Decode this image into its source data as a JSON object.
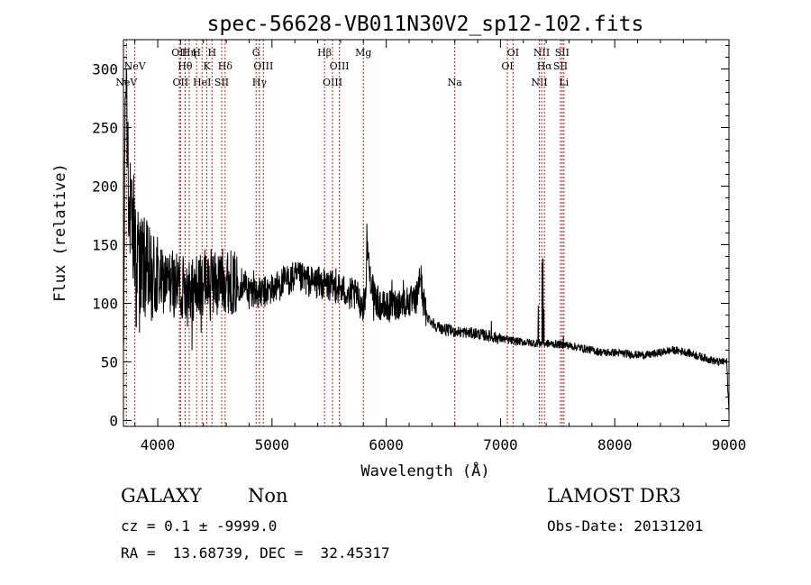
{
  "chart_data": {
    "type": "line",
    "title": "spec-56628-VB011N30V2_sp12-102.fits",
    "xlabel": "Wavelength (Å)",
    "ylabel": "Flux (relative)",
    "xlim": [
      3700,
      9000
    ],
    "ylim": [
      -5,
      325
    ],
    "x_ticks": [
      4000,
      5000,
      6000,
      7000,
      8000,
      9000
    ],
    "y_ticks": [
      0,
      50,
      100,
      150,
      200,
      250,
      300
    ],
    "grid": false,
    "series_color": "#000000",
    "line_color": "#b22222",
    "spectrum_anchors": [
      [
        3700,
        20
      ],
      [
        3710,
        210
      ],
      [
        3720,
        290
      ],
      [
        3735,
        240
      ],
      [
        3750,
        180
      ],
      [
        3770,
        165
      ],
      [
        3800,
        150
      ],
      [
        3830,
        140
      ],
      [
        3850,
        135
      ],
      [
        3880,
        130
      ],
      [
        3920,
        125
      ],
      [
        3960,
        122
      ],
      [
        4000,
        120
      ],
      [
        4050,
        118
      ],
      [
        4100,
        118
      ],
      [
        4150,
        115
      ],
      [
        4200,
        113
      ],
      [
        4250,
        115
      ],
      [
        4300,
        112
      ],
      [
        4350,
        112
      ],
      [
        4400,
        118
      ],
      [
        4450,
        120
      ],
      [
        4500,
        118
      ],
      [
        4550,
        120
      ],
      [
        4600,
        120
      ],
      [
        4650,
        118
      ],
      [
        4700,
        115
      ],
      [
        4750,
        118
      ],
      [
        4800,
        112
      ],
      [
        4850,
        110
      ],
      [
        4900,
        108
      ],
      [
        4950,
        110
      ],
      [
        5000,
        112
      ],
      [
        5050,
        115
      ],
      [
        5100,
        118
      ],
      [
        5150,
        120
      ],
      [
        5200,
        122
      ],
      [
        5250,
        121
      ],
      [
        5300,
        120
      ],
      [
        5350,
        118
      ],
      [
        5400,
        118
      ],
      [
        5450,
        116
      ],
      [
        5500,
        115
      ],
      [
        5550,
        114
      ],
      [
        5600,
        112
      ],
      [
        5650,
        110
      ],
      [
        5700,
        108
      ],
      [
        5750,
        105
      ],
      [
        5780,
        100
      ],
      [
        5800,
        98
      ],
      [
        5820,
        110
      ],
      [
        5835,
        150
      ],
      [
        5850,
        130
      ],
      [
        5870,
        118
      ],
      [
        5900,
        105
      ],
      [
        5950,
        98
      ],
      [
        6000,
        96
      ],
      [
        6050,
        98
      ],
      [
        6100,
        100
      ],
      [
        6150,
        100
      ],
      [
        6200,
        102
      ],
      [
        6250,
        100
      ],
      [
        6280,
        110
      ],
      [
        6300,
        125
      ],
      [
        6320,
        105
      ],
      [
        6350,
        90
      ],
      [
        6400,
        84
      ],
      [
        6450,
        80
      ],
      [
        6500,
        78
      ],
      [
        6600,
        76
      ],
      [
        6700,
        75
      ],
      [
        6800,
        74
      ],
      [
        6900,
        72
      ],
      [
        7000,
        70
      ],
      [
        7100,
        68
      ],
      [
        7200,
        67
      ],
      [
        7300,
        66
      ],
      [
        7350,
        66
      ],
      [
        7500,
        65
      ],
      [
        7600,
        64
      ],
      [
        7700,
        62
      ],
      [
        7800,
        60
      ],
      [
        7900,
        58
      ],
      [
        8000,
        58
      ],
      [
        8100,
        57
      ],
      [
        8200,
        56
      ],
      [
        8300,
        56
      ],
      [
        8400,
        58
      ],
      [
        8500,
        60
      ],
      [
        8600,
        59
      ],
      [
        8700,
        56
      ],
      [
        8800,
        53
      ],
      [
        8900,
        50
      ],
      [
        8980,
        50
      ],
      [
        9000,
        5
      ]
    ],
    "spectrum_spikes": [
      [
        3716,
        275
      ],
      [
        3726,
        300
      ],
      [
        3740,
        255
      ],
      [
        3760,
        220
      ],
      [
        3790,
        210
      ],
      [
        3805,
        180
      ],
      [
        3812,
        80
      ],
      [
        3840,
        75
      ],
      [
        3870,
        170
      ],
      [
        3930,
        150
      ],
      [
        3945,
        85
      ],
      [
        3990,
        148
      ],
      [
        4130,
        145
      ],
      [
        4190,
        140
      ],
      [
        4205,
        90
      ],
      [
        4260,
        80
      ],
      [
        4275,
        135
      ],
      [
        4300,
        60
      ],
      [
        4340,
        140
      ],
      [
        4380,
        75
      ],
      [
        4420,
        140
      ],
      [
        4460,
        85
      ],
      [
        4480,
        140
      ],
      [
        4520,
        90
      ],
      [
        4560,
        138
      ],
      [
        4610,
        135
      ],
      [
        4680,
        98
      ],
      [
        4800,
        95
      ],
      [
        4840,
        128
      ],
      [
        5180,
        135
      ],
      [
        5560,
        130
      ],
      [
        5680,
        95
      ],
      [
        5830,
        168
      ],
      [
        5890,
        85
      ],
      [
        6050,
        120
      ],
      [
        6150,
        120
      ],
      [
        6290,
        130
      ],
      [
        6920,
        85
      ],
      [
        7330,
        98
      ],
      [
        7365,
        135
      ],
      [
        7372,
        138
      ],
      [
        7380,
        95
      ],
      [
        7550,
        72
      ]
    ],
    "lines": [
      {
        "x": 3726,
        "label": "NeV",
        "row": 4
      },
      {
        "x": 3800,
        "label": "NeV",
        "row": 3
      },
      {
        "x": 4190,
        "label": "OII",
        "row": 1
      },
      {
        "x": 4200,
        "label": "OII",
        "row": 4
      },
      {
        "x": 4240,
        "label": "Hθ",
        "row": 3
      },
      {
        "x": 4275,
        "label": "Hη",
        "row": 1
      },
      {
        "x": 4340,
        "label": "H",
        "row": 1
      },
      {
        "x": 4388,
        "label": "HeI",
        "row": 4
      },
      {
        "x": 4430,
        "label": "K",
        "row": 3
      },
      {
        "x": 4475,
        "label": "H",
        "row": 1
      },
      {
        "x": 4560,
        "label": "SII",
        "row": 4
      },
      {
        "x": 4590,
        "label": "Hδ",
        "row": 3
      },
      {
        "x": 4861,
        "label": "G",
        "row": 1
      },
      {
        "x": 4890,
        "label": "Hγ",
        "row": 4
      },
      {
        "x": 4925,
        "label": "OIII",
        "row": 3
      },
      {
        "x": 5460,
        "label": "Hβ",
        "row": 1
      },
      {
        "x": 5530,
        "label": "OIII",
        "row": 4
      },
      {
        "x": 5590,
        "label": "OIII",
        "row": 3
      },
      {
        "x": 5800,
        "label": "Mg",
        "row": 1
      },
      {
        "x": 6600,
        "label": "Na",
        "row": 4
      },
      {
        "x": 7060,
        "label": "OI",
        "row": 3
      },
      {
        "x": 7110,
        "label": "OI",
        "row": 1
      },
      {
        "x": 7340,
        "label": "NII",
        "row": 4
      },
      {
        "x": 7360,
        "label": "NII",
        "row": 1
      },
      {
        "x": 7385,
        "label": "Hα",
        "row": 3
      },
      {
        "x": 7525,
        "label": "SII",
        "row": 3
      },
      {
        "x": 7540,
        "label": "SII",
        "row": 1
      },
      {
        "x": 7555,
        "label": "Li",
        "row": 4
      }
    ]
  },
  "info": {
    "class": "GALAXY",
    "subclass": "Non",
    "survey": "LAMOST DR3",
    "cz": "cz = 0.1 ± -9999.0",
    "obs_date": "Obs-Date: 20131201",
    "radec": "RA =  13.68739, DEC =  32.45317"
  }
}
